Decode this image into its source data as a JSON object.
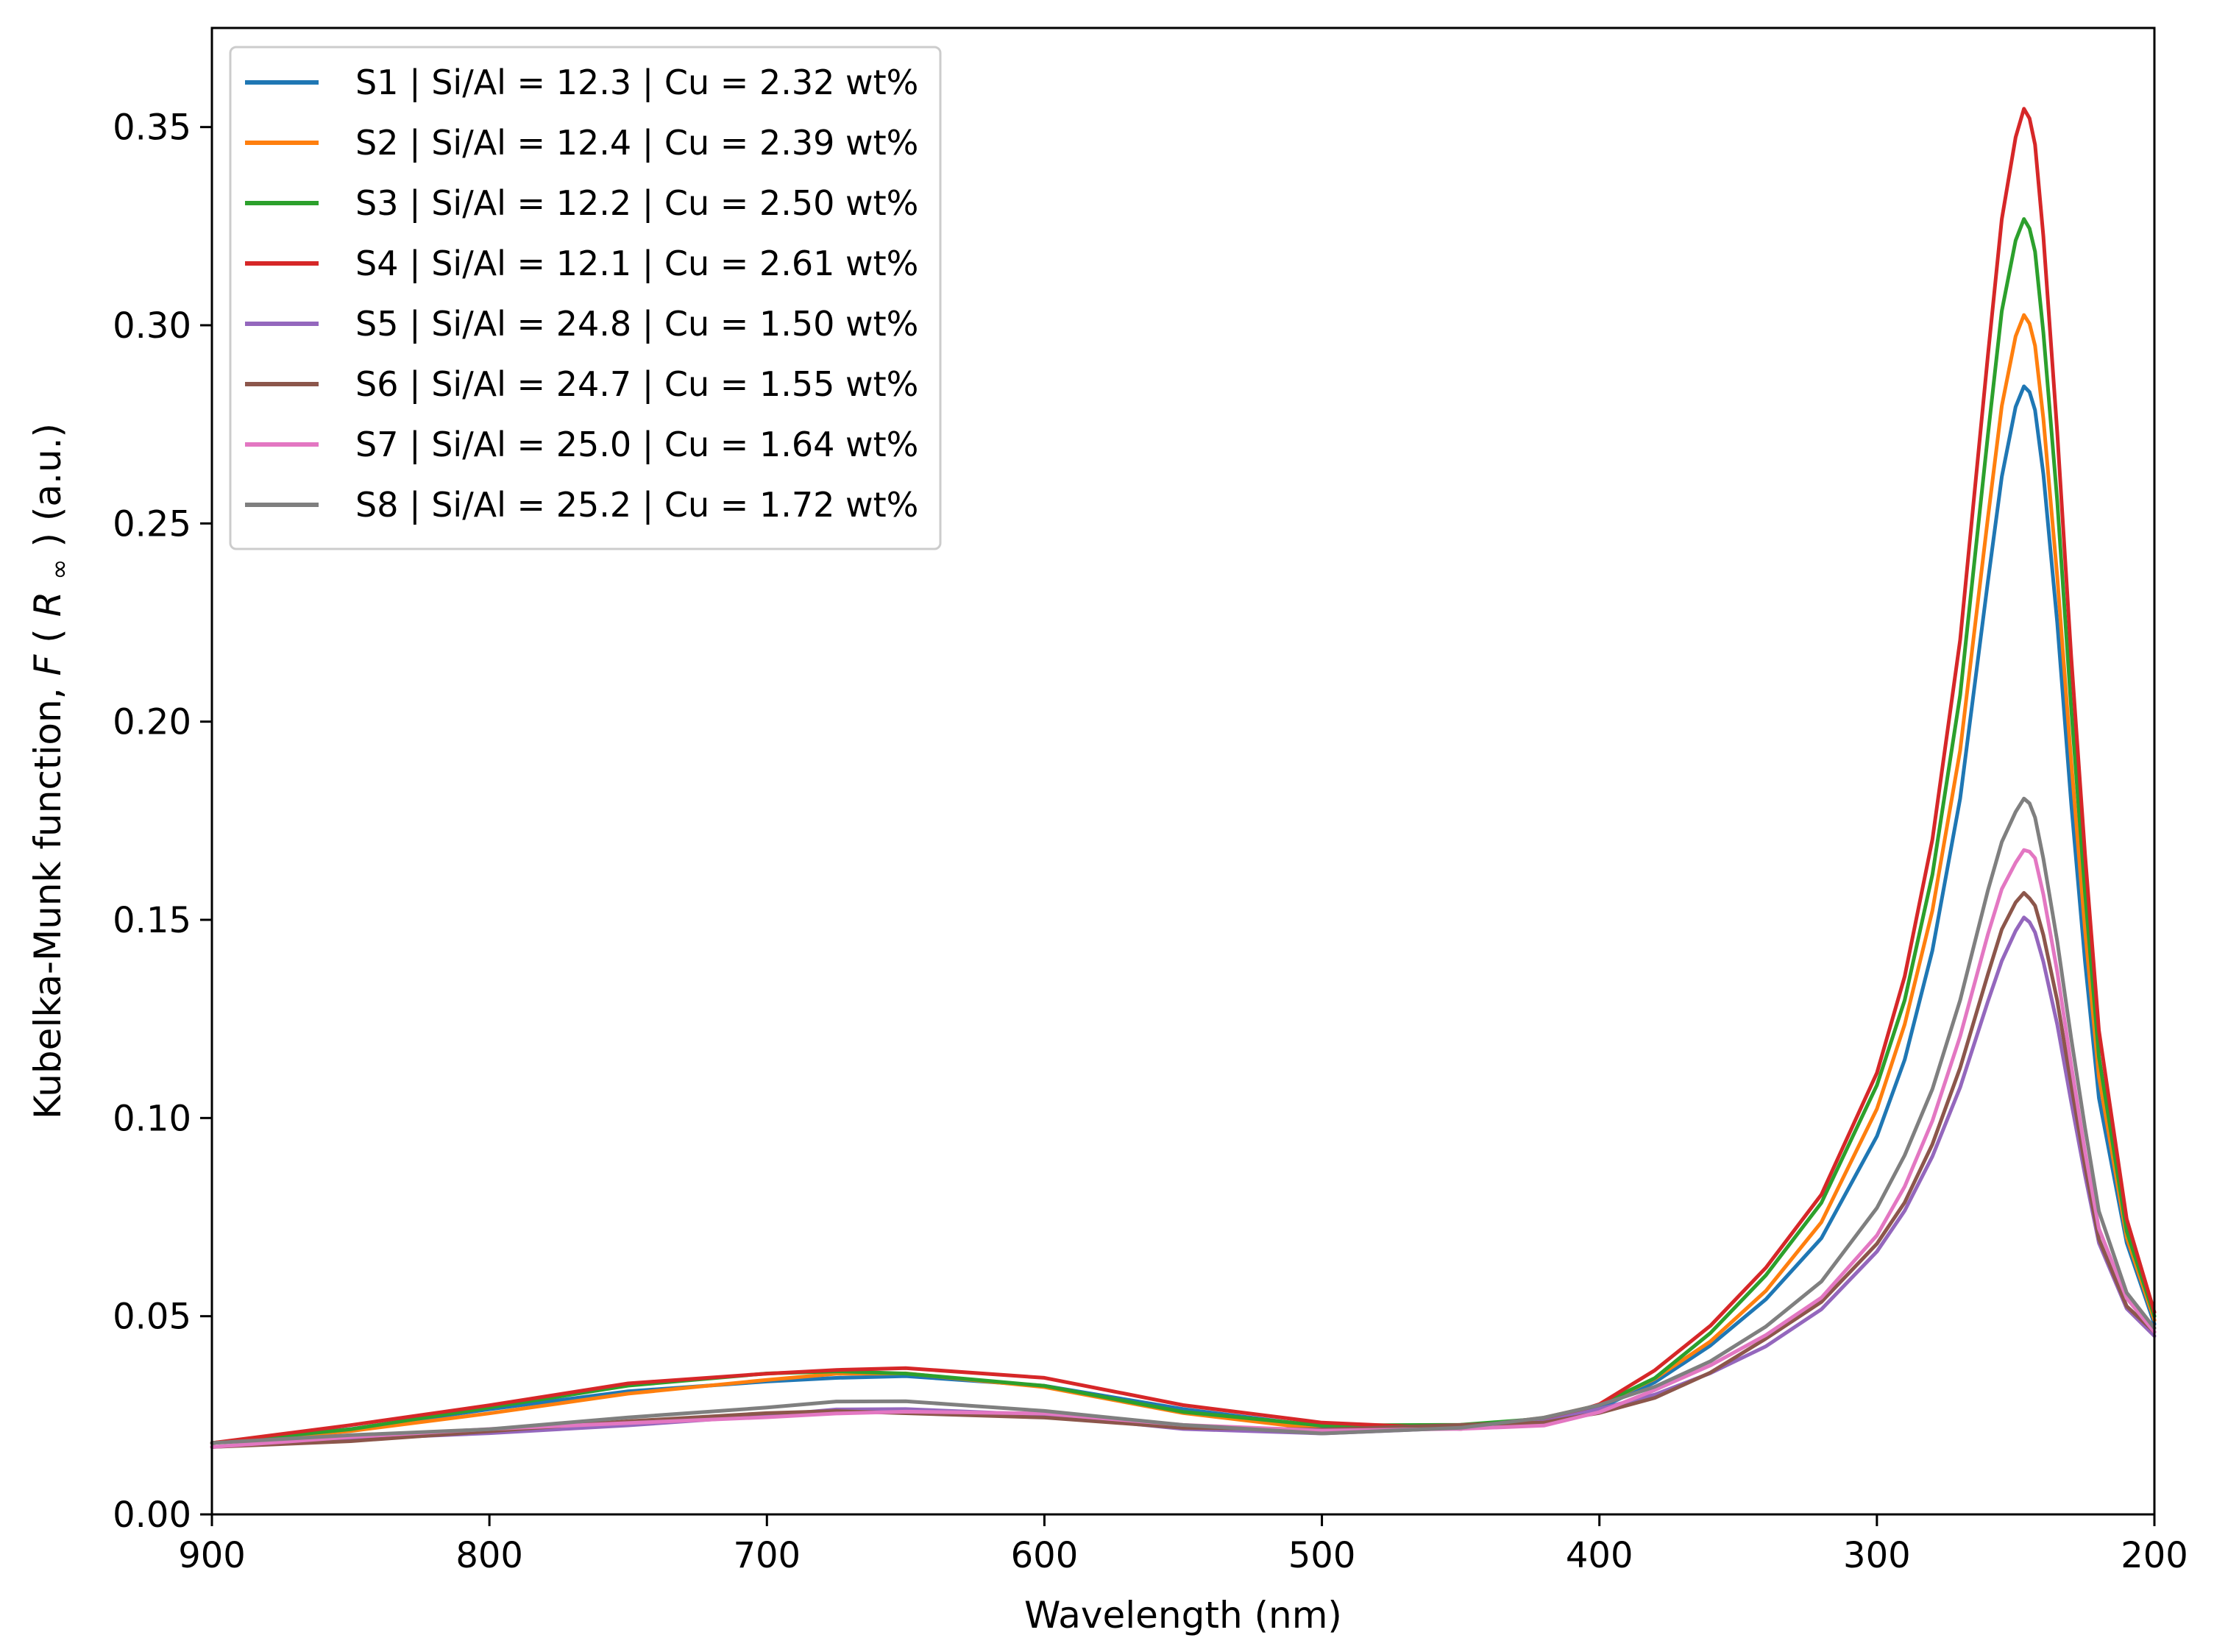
{
  "chart_data": {
    "type": "line",
    "title": "",
    "xlabel": "Wavelength (nm)",
    "ylabel": "Kubelka-Munk function, F(R∞) (a.u.)",
    "ylabel_parts": {
      "prefix": "Kubelka-Munk function, ",
      "f": "F",
      "open": "(",
      "r": "R",
      "sub": "∞",
      "close": ")",
      "suffix": " (a.u.)"
    },
    "xlim": [
      900,
      200
    ],
    "ylim": [
      0.0,
      0.375
    ],
    "x_reversed": true,
    "xticks": [
      "900",
      "800",
      "700",
      "600",
      "500",
      "400",
      "300",
      "200"
    ],
    "yticks": [
      "0.00",
      "0.05",
      "0.10",
      "0.15",
      "0.20",
      "0.25",
      "0.30",
      "0.35"
    ],
    "grid": false,
    "legend_position": "top-left",
    "x": [
      900,
      850,
      800,
      750,
      700,
      675,
      650,
      600,
      550,
      500,
      450,
      420,
      400,
      380,
      360,
      340,
      320,
      300,
      290,
      280,
      270,
      260,
      255,
      250,
      247,
      245,
      243,
      240,
      235,
      230,
      225,
      220,
      210,
      200
    ],
    "series": [
      {
        "name": "S1 | Si/Al = 12.3 | Cu = 2.32 wt%",
        "color": "#1f77b4",
        "values": [
          0.018,
          0.021,
          0.026,
          0.031,
          0.034,
          0.035,
          0.035,
          0.032,
          0.026,
          0.022,
          0.022,
          0.024,
          0.027,
          0.033,
          0.042,
          0.054,
          0.07,
          0.096,
          0.115,
          0.142,
          0.18,
          0.235,
          0.262,
          0.28,
          0.285,
          0.283,
          0.278,
          0.262,
          0.225,
          0.18,
          0.14,
          0.105,
          0.068,
          0.048
        ]
      },
      {
        "name": "S2 | Si/Al = 12.4 | Cu = 2.39 wt%",
        "color": "#ff7f0e",
        "values": [
          0.018,
          0.021,
          0.026,
          0.031,
          0.034,
          0.035,
          0.035,
          0.032,
          0.026,
          0.022,
          0.022,
          0.024,
          0.027,
          0.034,
          0.044,
          0.057,
          0.074,
          0.102,
          0.123,
          0.152,
          0.193,
          0.252,
          0.28,
          0.297,
          0.302,
          0.3,
          0.295,
          0.277,
          0.237,
          0.19,
          0.147,
          0.11,
          0.07,
          0.049
        ]
      },
      {
        "name": "S3 | Si/Al = 12.2 | Cu = 2.50 wt%",
        "color": "#2ca02c",
        "values": [
          0.018,
          0.022,
          0.027,
          0.032,
          0.035,
          0.036,
          0.036,
          0.033,
          0.026,
          0.022,
          0.022,
          0.024,
          0.028,
          0.035,
          0.046,
          0.06,
          0.078,
          0.108,
          0.13,
          0.162,
          0.207,
          0.272,
          0.303,
          0.321,
          0.327,
          0.325,
          0.319,
          0.298,
          0.255,
          0.203,
          0.157,
          0.116,
          0.072,
          0.05
        ]
      },
      {
        "name": "S4 | Si/Al = 12.1 | Cu = 2.61 wt%",
        "color": "#d62728",
        "values": [
          0.018,
          0.022,
          0.027,
          0.033,
          0.036,
          0.037,
          0.037,
          0.034,
          0.027,
          0.023,
          0.022,
          0.024,
          0.028,
          0.036,
          0.047,
          0.062,
          0.081,
          0.112,
          0.136,
          0.17,
          0.22,
          0.292,
          0.327,
          0.348,
          0.355,
          0.352,
          0.345,
          0.322,
          0.273,
          0.217,
          0.167,
          0.122,
          0.074,
          0.051
        ]
      },
      {
        "name": "S5 | Si/Al = 24.8 | Cu = 1.50 wt%",
        "color": "#9467bd",
        "values": [
          0.017,
          0.019,
          0.021,
          0.023,
          0.025,
          0.026,
          0.026,
          0.025,
          0.022,
          0.021,
          0.022,
          0.023,
          0.026,
          0.03,
          0.036,
          0.043,
          0.052,
          0.066,
          0.076,
          0.09,
          0.108,
          0.13,
          0.14,
          0.147,
          0.15,
          0.149,
          0.147,
          0.14,
          0.124,
          0.104,
          0.085,
          0.068,
          0.052,
          0.045
        ]
      },
      {
        "name": "S6 | Si/Al = 24.7 | Cu = 1.55 wt%",
        "color": "#8c564b",
        "values": [
          0.017,
          0.019,
          0.021,
          0.023,
          0.025,
          0.026,
          0.026,
          0.025,
          0.022,
          0.021,
          0.022,
          0.023,
          0.026,
          0.03,
          0.036,
          0.044,
          0.053,
          0.068,
          0.079,
          0.094,
          0.113,
          0.136,
          0.147,
          0.154,
          0.157,
          0.156,
          0.154,
          0.146,
          0.129,
          0.108,
          0.088,
          0.07,
          0.053,
          0.046
        ]
      },
      {
        "name": "S7 | Si/Al = 25.0 | Cu = 1.64 wt%",
        "color": "#e377c2",
        "values": [
          0.017,
          0.019,
          0.021,
          0.023,
          0.025,
          0.026,
          0.026,
          0.025,
          0.022,
          0.021,
          0.022,
          0.023,
          0.026,
          0.031,
          0.037,
          0.045,
          0.055,
          0.071,
          0.083,
          0.099,
          0.12,
          0.146,
          0.158,
          0.165,
          0.168,
          0.167,
          0.165,
          0.156,
          0.137,
          0.114,
          0.092,
          0.072,
          0.054,
          0.046
        ]
      },
      {
        "name": "S8 | Si/Al = 25.2 | Cu = 1.72 wt%",
        "color": "#7f7f7f",
        "values": [
          0.018,
          0.02,
          0.022,
          0.025,
          0.027,
          0.028,
          0.028,
          0.026,
          0.023,
          0.021,
          0.022,
          0.024,
          0.027,
          0.032,
          0.039,
          0.048,
          0.059,
          0.077,
          0.09,
          0.107,
          0.13,
          0.158,
          0.17,
          0.177,
          0.18,
          0.179,
          0.176,
          0.166,
          0.145,
          0.12,
          0.097,
          0.076,
          0.056,
          0.047
        ]
      }
    ]
  }
}
